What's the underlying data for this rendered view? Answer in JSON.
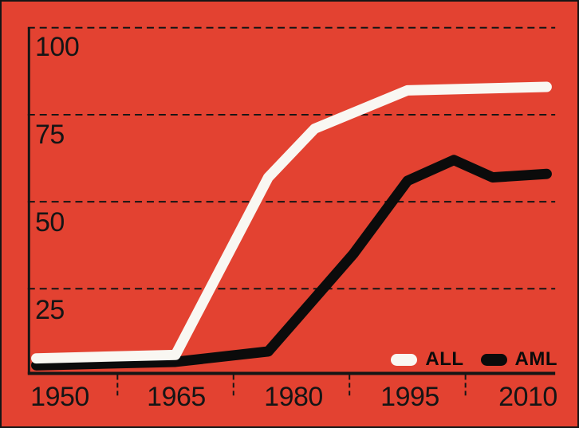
{
  "chart_data": {
    "type": "line",
    "title": "",
    "xlabel": "",
    "ylabel": "",
    "background_color": "#E34231",
    "axis_color": "#151515",
    "grid": "dashed-horizontal",
    "legend_position": "inside-bottom-right",
    "xlim": [
      1945.9,
      2014.1
    ],
    "ylim": [
      0,
      105
    ],
    "yaxis": {
      "ticks": [
        {
          "label": "100",
          "value": 100
        },
        {
          "label": "75",
          "value": 75
        },
        {
          "label": "50",
          "value": 50
        },
        {
          "label": "25",
          "value": 25
        }
      ]
    },
    "xaxis": {
      "ticks": [
        {
          "label": "1950",
          "value": 1950
        },
        {
          "label": "1965",
          "value": 1965
        },
        {
          "label": "1980",
          "value": 1980
        },
        {
          "label": "1995",
          "value": 1995
        },
        {
          "label": "2010",
          "value": 2010
        }
      ],
      "minor_tick_years": [
        1957.5,
        1972.5,
        1987.5,
        2002.5
      ]
    },
    "series": [
      {
        "name": "ALL",
        "color": "#F9F7F2",
        "points": [
          [
            1947,
            5
          ],
          [
            1965,
            6
          ],
          [
            1977,
            57
          ],
          [
            1983,
            71
          ],
          [
            1995,
            82
          ],
          [
            2013,
            83
          ]
        ]
      },
      {
        "name": "AML",
        "color": "#0B0B0B",
        "points": [
          [
            1947,
            3
          ],
          [
            1965,
            4
          ],
          [
            1977,
            7
          ],
          [
            1988,
            35
          ],
          [
            1995,
            56
          ],
          [
            2001,
            62
          ],
          [
            2006,
            57
          ],
          [
            2013,
            58
          ]
        ]
      }
    ]
  }
}
